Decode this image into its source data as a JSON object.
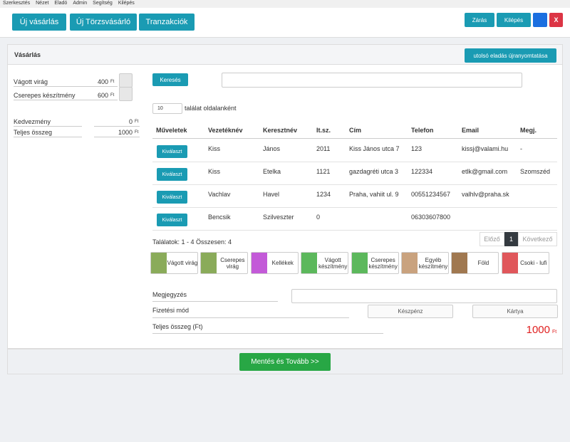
{
  "menu": [
    "Szerkesztés",
    "Nézet",
    "Eladó",
    "Admin",
    "Segítség",
    "Kilépés"
  ],
  "toolbar": {
    "left": [
      "Új vásárlás",
      "Új Törzsvásárló",
      "Tranzakciók"
    ],
    "close": "Zárás",
    "logout": "Kilépés",
    "exit": "X"
  },
  "panel": {
    "title": "Vásárlás",
    "reprint": "utolsó eladás újranyomtatása"
  },
  "cart": [
    {
      "name": "Vágott virág",
      "price": 400,
      "currency": "Ft"
    },
    {
      "name": "Cserepes készítmény",
      "price": 600,
      "currency": "Ft"
    }
  ],
  "summary": [
    {
      "label": "Kedvezmény",
      "value": 0,
      "currency": "Ft"
    },
    {
      "label": "Teljes összeg",
      "value": 1000,
      "currency": "Ft"
    }
  ],
  "search": {
    "button": "Keresés",
    "page_size": "10",
    "page_size_label": "találat oldalanként"
  },
  "table": {
    "headers": [
      "Műveletek",
      "Vezetéknév",
      "Keresztnév",
      "It.sz.",
      "Cím",
      "Telefon",
      "Email",
      "Megj."
    ],
    "select_label": "Kiválaszt",
    "rows": [
      {
        "last": "Kiss",
        "first": "János",
        "zip": "2011",
        "address": "Kiss János utca 7",
        "phone": "123",
        "email": "kissj@valami.hu",
        "note": "-"
      },
      {
        "last": "Kiss",
        "first": "Etelka",
        "zip": "1121",
        "address": "gazdagréti utca 3",
        "phone": "122334",
        "email": "etlk@gmail.com",
        "note": "Szomszéd"
      },
      {
        "last": "Vachlav",
        "first": "Havel",
        "zip": "1234",
        "address": "Praha, vahiit ul. 9",
        "phone": "00551234567",
        "email": "valhlv@praha.sk"
      },
      {
        "last": "Bencsik",
        "first": "Szilveszter",
        "zip": "0",
        "phone": "06303607800"
      }
    ]
  },
  "results_info": "Találatok: 1 - 4 Összesen: 4",
  "pager": {
    "prev": "Előző",
    "current": "1",
    "next": "Következő"
  },
  "categories": [
    {
      "label": "Vágott virág",
      "color": "#8aab5a"
    },
    {
      "label": "Cserepes virág",
      "color": "#8aab5a"
    },
    {
      "label": "Kellékek",
      "color": "#c35ad8"
    },
    {
      "label": "Vágott készítmény",
      "color": "#5cb85c"
    },
    {
      "label": "Cserepes készítmény",
      "color": "#5cb85c"
    },
    {
      "label": "Egyéb készítmény",
      "color": "#c9a27e"
    },
    {
      "label": "Föld",
      "color": "#a07850"
    },
    {
      "label": "Csoki - lufi",
      "color": "#e0575b"
    }
  ],
  "form": {
    "note_label": "Megjegyzés",
    "payment_label": "Fizetési mód",
    "payment_options": [
      "Készpénz",
      "Kártya"
    ],
    "total_label": "Teljes összeg (Ft)",
    "total": 1000,
    "total_currency": "Ft"
  },
  "save_button": "Mentés és Tovább >>"
}
